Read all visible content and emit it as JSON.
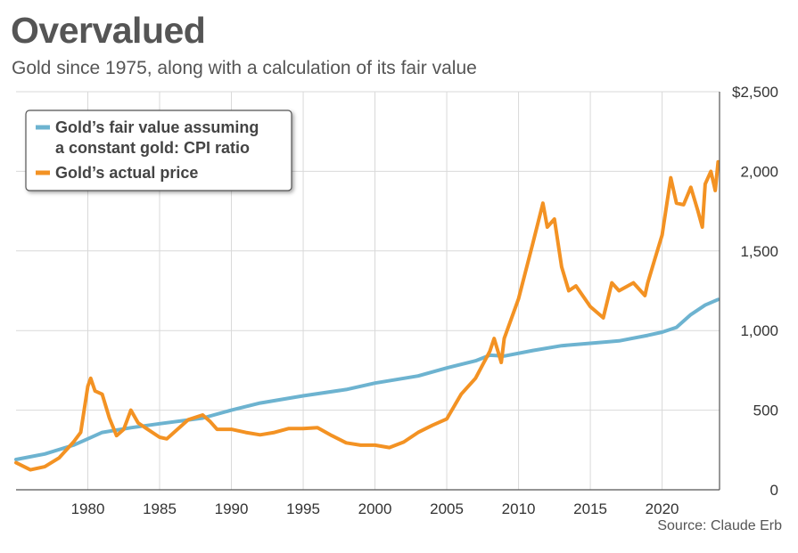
{
  "title": "Overvalued",
  "subtitle": "Gold since 1975, along with a calculation of its fair value",
  "source": "Source: Claude Erb",
  "colors": {
    "fair_value": "#6db3d0",
    "actual": "#f39223",
    "grid": "#d9d9d9"
  },
  "chart_data": {
    "type": "line",
    "xlim": [
      1975,
      2024
    ],
    "ylim": [
      0,
      2500
    ],
    "x_ticks": [
      1980,
      1985,
      1990,
      1995,
      2000,
      2005,
      2010,
      2015,
      2020
    ],
    "y_ticks": [
      0,
      500,
      1000,
      1500,
      2000,
      2500
    ],
    "y_tick_labels": [
      "0",
      "500",
      "1,000",
      "1,500",
      "2,000",
      "$2,500"
    ],
    "grid": true,
    "legend_position": "top-left",
    "series": [
      {
        "name": "Gold’s fair value assuming\na constant gold: CPI ratio",
        "key": "fair_value",
        "points": [
          [
            1975,
            190
          ],
          [
            1977,
            225
          ],
          [
            1979,
            280
          ],
          [
            1980,
            320
          ],
          [
            1981,
            360
          ],
          [
            1983,
            390
          ],
          [
            1985,
            415
          ],
          [
            1988,
            450
          ],
          [
            1990,
            500
          ],
          [
            1992,
            545
          ],
          [
            1995,
            590
          ],
          [
            1998,
            630
          ],
          [
            2000,
            670
          ],
          [
            2003,
            715
          ],
          [
            2005,
            765
          ],
          [
            2007,
            810
          ],
          [
            2008,
            845
          ],
          [
            2009,
            840
          ],
          [
            2011,
            875
          ],
          [
            2013,
            905
          ],
          [
            2015,
            920
          ],
          [
            2017,
            935
          ],
          [
            2019,
            970
          ],
          [
            2020,
            990
          ],
          [
            2021,
            1020
          ],
          [
            2022,
            1100
          ],
          [
            2023,
            1160
          ],
          [
            2023.9,
            1195
          ]
        ]
      },
      {
        "name": "Gold’s actual price",
        "key": "actual",
        "points": [
          [
            1975,
            170
          ],
          [
            1976,
            125
          ],
          [
            1977,
            145
          ],
          [
            1978,
            200
          ],
          [
            1979,
            300
          ],
          [
            1979.5,
            360
          ],
          [
            1980,
            650
          ],
          [
            1980.2,
            700
          ],
          [
            1980.5,
            620
          ],
          [
            1981,
            600
          ],
          [
            1981.5,
            450
          ],
          [
            1982,
            340
          ],
          [
            1982.5,
            380
          ],
          [
            1983,
            500
          ],
          [
            1983.5,
            420
          ],
          [
            1984,
            390
          ],
          [
            1985,
            330
          ],
          [
            1985.5,
            320
          ],
          [
            1986,
            360
          ],
          [
            1987,
            440
          ],
          [
            1988,
            470
          ],
          [
            1988.5,
            430
          ],
          [
            1989,
            380
          ],
          [
            1990,
            380
          ],
          [
            1991,
            360
          ],
          [
            1992,
            345
          ],
          [
            1993,
            360
          ],
          [
            1994,
            385
          ],
          [
            1995,
            385
          ],
          [
            1996,
            390
          ],
          [
            1997,
            340
          ],
          [
            1998,
            295
          ],
          [
            1999,
            280
          ],
          [
            2000,
            280
          ],
          [
            2001,
            265
          ],
          [
            2002,
            300
          ],
          [
            2003,
            360
          ],
          [
            2004,
            405
          ],
          [
            2005,
            445
          ],
          [
            2006,
            600
          ],
          [
            2007,
            700
          ],
          [
            2008,
            870
          ],
          [
            2008.3,
            950
          ],
          [
            2008.8,
            800
          ],
          [
            2009,
            950
          ],
          [
            2010,
            1200
          ],
          [
            2011,
            1550
          ],
          [
            2011.7,
            1800
          ],
          [
            2012,
            1650
          ],
          [
            2012.5,
            1700
          ],
          [
            2013,
            1400
          ],
          [
            2013.5,
            1250
          ],
          [
            2014,
            1280
          ],
          [
            2015,
            1150
          ],
          [
            2015.9,
            1080
          ],
          [
            2016.5,
            1300
          ],
          [
            2017,
            1250
          ],
          [
            2018,
            1300
          ],
          [
            2018.8,
            1220
          ],
          [
            2019,
            1300
          ],
          [
            2019.5,
            1450
          ],
          [
            2020,
            1600
          ],
          [
            2020.6,
            1960
          ],
          [
            2021,
            1800
          ],
          [
            2021.5,
            1790
          ],
          [
            2022,
            1900
          ],
          [
            2022.5,
            1750
          ],
          [
            2022.8,
            1650
          ],
          [
            2023,
            1920
          ],
          [
            2023.4,
            2000
          ],
          [
            2023.7,
            1880
          ],
          [
            2023.9,
            2060
          ]
        ]
      }
    ]
  }
}
